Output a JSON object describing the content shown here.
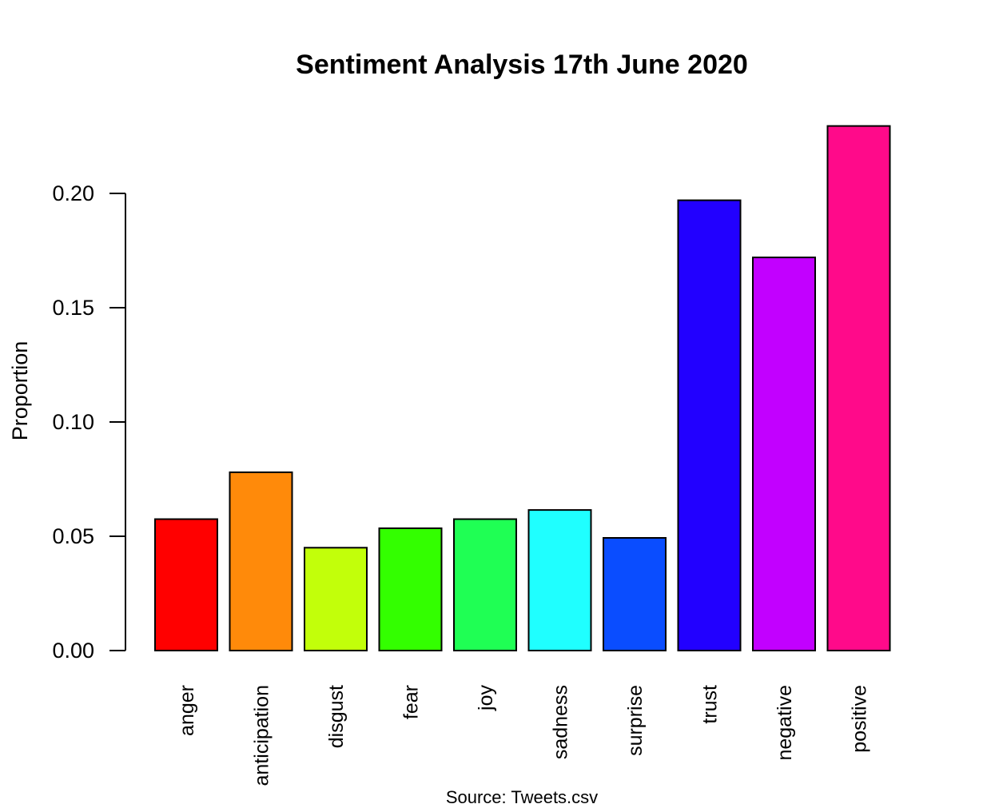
{
  "chart_data": {
    "type": "bar",
    "title": "Sentiment Analysis 17th June 2020",
    "xlabel": "",
    "ylabel": "Proportion",
    "sub": "Source: Tweets.csv",
    "categories": [
      "anger",
      "anticipation",
      "disgust",
      "fear",
      "joy",
      "sadness",
      "surprise",
      "trust",
      "negative",
      "positive"
    ],
    "values": [
      0.0575,
      0.078,
      0.045,
      0.0535,
      0.0575,
      0.0615,
      0.0493,
      0.197,
      0.172,
      0.2295
    ],
    "colors": [
      "#FF0000",
      "#FF8A0A",
      "#C2FF0A",
      "#33FF00",
      "#1FFF54",
      "#1FFFFF",
      "#0A4DFF",
      "#2200FF",
      "#C200FF",
      "#FF0A8A"
    ],
    "yticks": [
      "0.00",
      "0.05",
      "0.10",
      "0.15",
      "0.20"
    ],
    "ylim": [
      0,
      0.2295
    ],
    "grid": false,
    "legend": "none"
  }
}
